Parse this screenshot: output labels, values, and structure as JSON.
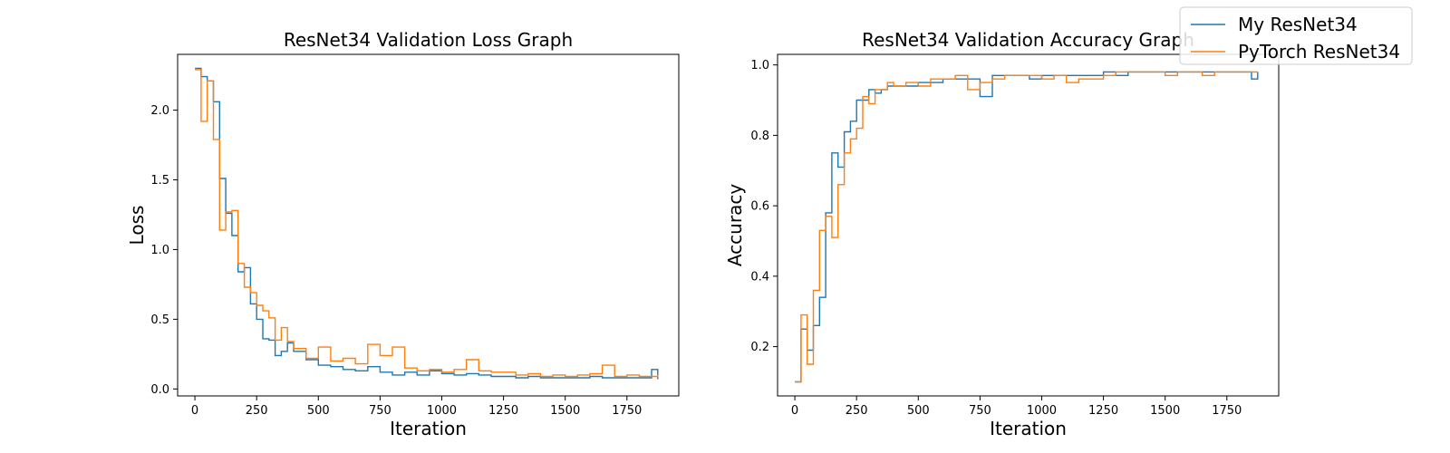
{
  "chart_data": [
    {
      "type": "line",
      "step": true,
      "title": "ResNet34 Validation Loss Graph",
      "xlabel": "Iteration",
      "ylabel": "Loss",
      "xlim": [
        -70,
        1960
      ],
      "ylim": [
        -0.05,
        2.4
      ],
      "xticks": [
        0,
        250,
        500,
        750,
        1000,
        1250,
        1500,
        1750
      ],
      "yticks": [
        0.0,
        0.5,
        1.0,
        1.5,
        2.0
      ],
      "ytick_labels": [
        "0.0",
        "0.5",
        "1.0",
        "1.5",
        "2.0"
      ],
      "x": [
        0,
        25,
        50,
        75,
        100,
        125,
        150,
        175,
        200,
        225,
        250,
        275,
        300,
        325,
        350,
        375,
        400,
        450,
        500,
        550,
        600,
        650,
        700,
        750,
        800,
        850,
        900,
        950,
        1000,
        1050,
        1100,
        1150,
        1200,
        1250,
        1300,
        1350,
        1400,
        1450,
        1500,
        1550,
        1600,
        1650,
        1700,
        1750,
        1800,
        1850,
        1875
      ],
      "series": [
        {
          "name": "My ResNet34",
          "color": "#1f77b4",
          "values": [
            2.3,
            2.24,
            2.21,
            2.06,
            1.51,
            1.26,
            1.1,
            0.84,
            0.87,
            0.61,
            0.5,
            0.36,
            0.35,
            0.24,
            0.27,
            0.33,
            0.27,
            0.21,
            0.17,
            0.16,
            0.14,
            0.13,
            0.16,
            0.12,
            0.1,
            0.12,
            0.1,
            0.13,
            0.11,
            0.1,
            0.11,
            0.1,
            0.09,
            0.09,
            0.08,
            0.09,
            0.08,
            0.08,
            0.08,
            0.08,
            0.09,
            0.08,
            0.08,
            0.08,
            0.08,
            0.14,
            0.07
          ]
        },
        {
          "name": "PyTorch ResNet34",
          "color": "#ff7f0e",
          "values": [
            2.29,
            1.92,
            2.21,
            1.79,
            1.14,
            1.27,
            1.28,
            0.9,
            0.73,
            0.69,
            0.6,
            0.56,
            0.51,
            0.35,
            0.44,
            0.34,
            0.29,
            0.22,
            0.3,
            0.2,
            0.22,
            0.18,
            0.32,
            0.24,
            0.3,
            0.15,
            0.13,
            0.14,
            0.12,
            0.14,
            0.21,
            0.13,
            0.12,
            0.12,
            0.1,
            0.11,
            0.09,
            0.1,
            0.09,
            0.1,
            0.11,
            0.17,
            0.09,
            0.1,
            0.09,
            0.09,
            0.1
          ]
        }
      ]
    },
    {
      "type": "line",
      "step": true,
      "title": "ResNet34 Validation Accuracy Graph",
      "xlabel": "Iteration",
      "ylabel": "Accuracy",
      "xlim": [
        -70,
        1960
      ],
      "ylim": [
        0.06,
        1.03
      ],
      "xticks": [
        0,
        250,
        500,
        750,
        1000,
        1250,
        1500,
        1750
      ],
      "yticks": [
        0.2,
        0.4,
        0.6,
        0.8,
        1.0
      ],
      "ytick_labels": [
        "0.2",
        "0.4",
        "0.6",
        "0.8",
        "1.0"
      ],
      "x": [
        0,
        25,
        50,
        75,
        100,
        125,
        150,
        175,
        200,
        225,
        250,
        275,
        300,
        325,
        350,
        375,
        400,
        450,
        500,
        550,
        600,
        650,
        700,
        750,
        800,
        850,
        900,
        950,
        1000,
        1050,
        1100,
        1150,
        1200,
        1250,
        1300,
        1350,
        1400,
        1450,
        1500,
        1550,
        1600,
        1650,
        1700,
        1750,
        1800,
        1850,
        1875
      ],
      "series": [
        {
          "name": "My ResNet34",
          "color": "#1f77b4",
          "values": [
            0.1,
            0.25,
            0.19,
            0.26,
            0.34,
            0.58,
            0.75,
            0.71,
            0.81,
            0.84,
            0.9,
            0.9,
            0.93,
            0.92,
            0.93,
            0.94,
            0.94,
            0.94,
            0.95,
            0.95,
            0.96,
            0.96,
            0.96,
            0.91,
            0.97,
            0.97,
            0.97,
            0.96,
            0.97,
            0.97,
            0.97,
            0.97,
            0.97,
            0.98,
            0.97,
            0.98,
            0.98,
            0.98,
            0.98,
            0.98,
            0.98,
            0.98,
            0.98,
            0.98,
            0.98,
            0.96,
            0.98
          ]
        },
        {
          "name": "PyTorch ResNet34",
          "color": "#ff7f0e",
          "values": [
            0.1,
            0.29,
            0.15,
            0.36,
            0.53,
            0.57,
            0.51,
            0.66,
            0.75,
            0.79,
            0.82,
            0.91,
            0.89,
            0.93,
            0.93,
            0.95,
            0.94,
            0.95,
            0.94,
            0.96,
            0.96,
            0.97,
            0.93,
            0.95,
            0.96,
            0.97,
            0.97,
            0.97,
            0.96,
            0.97,
            0.95,
            0.96,
            0.96,
            0.97,
            0.98,
            0.98,
            0.98,
            0.98,
            0.97,
            0.98,
            0.98,
            0.97,
            0.98,
            0.98,
            0.98,
            0.98,
            0.98
          ]
        }
      ]
    }
  ],
  "legend": {
    "location": "top-right",
    "entries": [
      {
        "label": "My ResNet34",
        "color": "#1f77b4"
      },
      {
        "label": "PyTorch ResNet34",
        "color": "#ff7f0e"
      }
    ]
  }
}
